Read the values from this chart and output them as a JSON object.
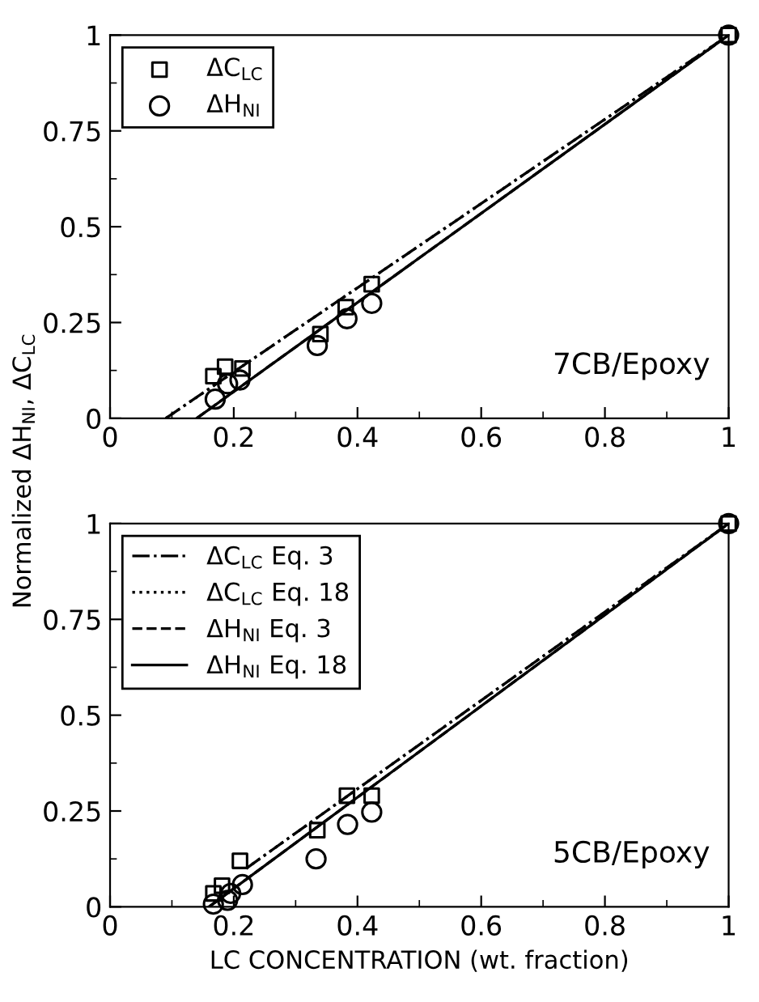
{
  "chart_data": [
    {
      "type": "scatter",
      "ylabel": "Normalized ΔH$_{NI}$, ΔC$_{LC}$",
      "xlim": [
        0,
        1
      ],
      "ylim": [
        0,
        1
      ],
      "xticks": [
        0,
        0.2,
        0.4,
        0.6,
        0.8,
        1
      ],
      "yticks": [
        0,
        0.25,
        0.5,
        0.75,
        1
      ],
      "grid": false,
      "legend": "top left",
      "annotations": [
        "7CB/Epoxy"
      ],
      "series": [
        {
          "name": "ΔC$_{LC}$",
          "type": "scatter",
          "marker": "square",
          "color": "#000000",
          "x": [
            0.167,
            0.186,
            0.214,
            0.34,
            0.381,
            0.423,
            1.0
          ],
          "values": [
            0.11,
            0.135,
            0.13,
            0.22,
            0.29,
            0.35,
            1.0
          ]
        },
        {
          "name": "ΔH$_{NI}$",
          "type": "scatter",
          "marker": "circle",
          "color": "#000000",
          "x": [
            0.17,
            0.19,
            0.21,
            0.335,
            0.383,
            0.423,
            1.0
          ],
          "values": [
            0.05,
            0.09,
            0.1,
            0.19,
            0.26,
            0.3,
            1.0
          ]
        },
        {
          "type": "line",
          "line_style": "dashdot",
          "color": "#000000",
          "x": [
            0.09,
            1.0
          ],
          "values": [
            0,
            1.0
          ]
        },
        {
          "type": "line",
          "line_style": "dotted",
          "color": "#000000",
          "x": [
            0.09,
            1.0
          ],
          "values": [
            0,
            1.0
          ]
        },
        {
          "type": "line",
          "line_style": "dashed",
          "color": "#000000",
          "x": [
            0.14,
            1.0
          ],
          "values": [
            0,
            1.0
          ]
        },
        {
          "type": "line",
          "line_style": "solid",
          "color": "#000000",
          "x": [
            0.14,
            1.0
          ],
          "values": [
            0,
            1.0
          ]
        }
      ]
    },
    {
      "type": "scatter",
      "xlabel": "LC CONCENTRATION (wt. fraction)",
      "xlim": [
        0,
        1
      ],
      "ylim": [
        0,
        1
      ],
      "xticks": [
        0,
        0.2,
        0.4,
        0.6,
        0.8,
        1
      ],
      "yticks": [
        0,
        0.25,
        0.5,
        0.75,
        1
      ],
      "grid": false,
      "legend": "top left",
      "annotations": [
        "5CB/Epoxy"
      ],
      "series": [
        {
          "type": "scatter",
          "marker": "square",
          "color": "#000000",
          "x": [
            0.167,
            0.181,
            0.19,
            0.21,
            0.335,
            0.383,
            0.423,
            1.0
          ],
          "values": [
            0.035,
            0.055,
            null,
            0.12,
            0.2,
            0.29,
            0.29,
            1.0
          ]
        },
        {
          "type": "scatter",
          "marker": "circle",
          "color": "#000000",
          "x": [
            0.167,
            0.19,
            0.195,
            0.214,
            0.333,
            0.384,
            0.423,
            1.0
          ],
          "values": [
            0.007,
            0.017,
            0.035,
            0.058,
            0.125,
            0.215,
            0.247,
            1.0
          ]
        },
        {
          "name": "ΔC$_{LC}$ Eq. 3",
          "type": "line",
          "line_style": "dashdot",
          "color": "#000000",
          "x": [
            0.22,
            1.0
          ],
          "values": [
            0.1,
            1.0
          ]
        },
        {
          "name": "ΔC$_{LC}$ Eq. 18",
          "type": "line",
          "line_style": "dotted",
          "color": "#000000",
          "x": [
            0.22,
            1.0
          ],
          "values": [
            0.1,
            1.0
          ]
        },
        {
          "name": "ΔH$_{NI}$ Eq. 3",
          "type": "line",
          "line_style": "dashed",
          "color": "#000000",
          "x": [
            0.16,
            1.0
          ],
          "values": [
            0,
            1.0
          ]
        },
        {
          "name": "ΔH$_{NI}$ Eq. 18",
          "type": "line",
          "line_style": "solid",
          "color": "#000000",
          "x": [
            0.16,
            1.0
          ],
          "values": [
            0,
            1.0
          ]
        }
      ]
    }
  ]
}
